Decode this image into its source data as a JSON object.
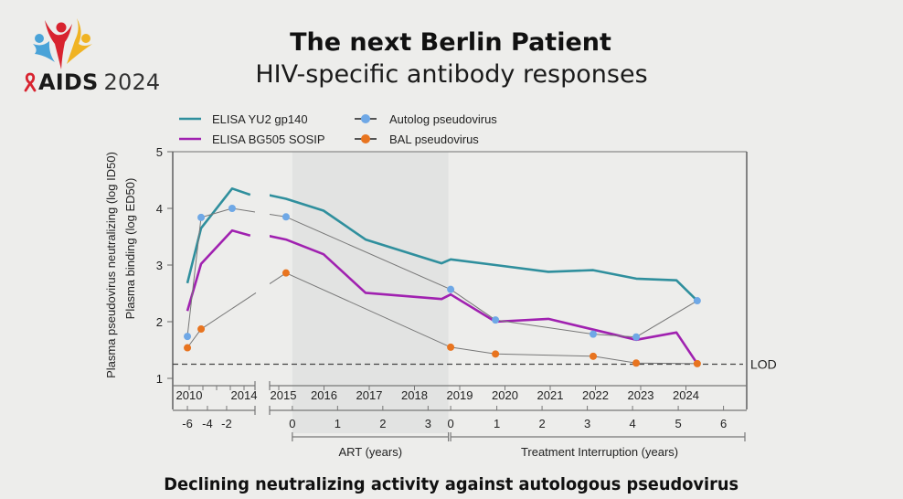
{
  "header": {
    "title": "The next Berlin Patient",
    "subtitle": "HIV-specific antibody responses"
  },
  "logo": {
    "brand": "AIDS",
    "year": "2024",
    "icon": "people-celebrating-icon",
    "ribbon_icon": "red-ribbon-icon",
    "colors": {
      "blue": "#4aa3d8",
      "red": "#d8232f",
      "yellow": "#f0b323",
      "ribbon": "#d8232f"
    }
  },
  "footer": {
    "caption": "Declining neutralizing activity against autologous pseudovirus"
  },
  "chart_data": {
    "type": "line",
    "title": "",
    "ylabel_lines": [
      "Plasma pseudovirus neutralizing (log ID50)",
      "Plasma binding (log ED50)"
    ],
    "ylim": [
      1,
      5
    ],
    "yticks": [
      1,
      2,
      3,
      4,
      5
    ],
    "x_units": "calendar year (axis broken between 2014 and 2015)",
    "x_segments": [
      {
        "from": 2009.6,
        "to": 2014.6
      },
      {
        "from": 2014.75,
        "to": 2025.3
      }
    ],
    "year_ticks": [
      {
        "label": "2010",
        "x": 2010,
        "labeled": true
      },
      {
        "label": "",
        "x": 2011,
        "labeled": false
      },
      {
        "label": "",
        "x": 2012,
        "labeled": false
      },
      {
        "label": "",
        "x": 2013,
        "labeled": false
      },
      {
        "label": "2014",
        "x": 2014,
        "labeled": true
      },
      {
        "label": "2015",
        "x": 2015,
        "labeled": true
      },
      {
        "label": "2016",
        "x": 2016,
        "labeled": true
      },
      {
        "label": "2017",
        "x": 2017,
        "labeled": true
      },
      {
        "label": "2018",
        "x": 2018,
        "labeled": true
      },
      {
        "label": "2019",
        "x": 2019,
        "labeled": true
      },
      {
        "label": "2020",
        "x": 2020,
        "labeled": true
      },
      {
        "label": "2021",
        "x": 2021,
        "labeled": true
      },
      {
        "label": "2022",
        "x": 2022,
        "labeled": true
      },
      {
        "label": "2023",
        "x": 2023,
        "labeled": true
      },
      {
        "label": "2024",
        "x": 2024,
        "labeled": true
      }
    ],
    "relative_ticks": [
      {
        "label": "-6",
        "x": 2009.87
      },
      {
        "label": "-4",
        "x": 2011.33
      },
      {
        "label": "-2",
        "x": 2012.73
      },
      {
        "label": "0",
        "x": 2015.3
      },
      {
        "label": "1",
        "x": 2016.3
      },
      {
        "label": "2",
        "x": 2017.3
      },
      {
        "label": "3",
        "x": 2018.3
      },
      {
        "label": "0",
        "x": 2018.8
      },
      {
        "label": "1",
        "x": 2019.82
      },
      {
        "label": "2",
        "x": 2020.82
      },
      {
        "label": "3",
        "x": 2021.82
      },
      {
        "label": "4",
        "x": 2022.82
      },
      {
        "label": "5",
        "x": 2023.83
      },
      {
        "label": "6",
        "x": 2024.83
      }
    ],
    "phases": [
      {
        "label": "ART (years)",
        "from": 2015.3,
        "to": 2018.75,
        "shaded": true,
        "shade_color": "#e2e3e2"
      },
      {
        "label": "Treatment Interruption (years)",
        "from": 2018.8,
        "to": 2025.3,
        "shaded": false
      }
    ],
    "lod": {
      "label": "LOD",
      "value": 1.25
    },
    "series": [
      {
        "name": "ELISA YU2 gp140",
        "kind": "line",
        "color": "#2f8f9d",
        "segments": [
          [
            [
              2009.87,
              2.68
            ],
            [
              2010.87,
              3.65
            ],
            [
              2013.13,
              4.35
            ],
            [
              2014.45,
              4.24
            ]
          ],
          [
            [
              2014.75,
              4.24
            ],
            [
              2015.16,
              4.17
            ],
            [
              2015.99,
              3.96
            ],
            [
              2016.92,
              3.45
            ],
            [
              2018.6,
              3.03
            ],
            [
              2018.8,
              3.1
            ],
            [
              2019.79,
              3.0
            ],
            [
              2020.96,
              2.88
            ],
            [
              2021.95,
              2.91
            ],
            [
              2022.9,
              2.76
            ],
            [
              2023.79,
              2.73
            ],
            [
              2024.25,
              2.37
            ]
          ]
        ]
      },
      {
        "name": "ELISA BG505 SOSIP",
        "kind": "line",
        "color": "#a021b0",
        "segments": [
          [
            [
              2009.87,
              2.19
            ],
            [
              2010.87,
              3.02
            ],
            [
              2013.13,
              3.61
            ],
            [
              2014.45,
              3.52
            ]
          ],
          [
            [
              2014.75,
              3.52
            ],
            [
              2015.16,
              3.45
            ],
            [
              2015.99,
              3.19
            ],
            [
              2016.92,
              2.51
            ],
            [
              2018.6,
              2.4
            ],
            [
              2018.8,
              2.48
            ],
            [
              2019.79,
              2.0
            ],
            [
              2020.96,
              2.05
            ],
            [
              2022.9,
              1.68
            ],
            [
              2023.79,
              1.81
            ],
            [
              2024.25,
              1.26
            ]
          ]
        ]
      },
      {
        "name": "Autolog pseudovirus",
        "kind": "line+marker",
        "color": "#6fa8e6",
        "line_color": "#777777",
        "points": [
          [
            2009.87,
            1.74
          ],
          [
            2010.87,
            3.84
          ],
          [
            2013.13,
            4.0
          ],
          [
            2015.16,
            3.85
          ],
          [
            2018.8,
            2.57
          ],
          [
            2019.79,
            2.03
          ],
          [
            2021.95,
            1.78
          ],
          [
            2022.9,
            1.73
          ],
          [
            2024.25,
            2.37
          ]
        ],
        "break_after_index": 2
      },
      {
        "name": "BAL pseudovirus",
        "kind": "line+marker",
        "color": "#e8741f",
        "line_color": "#777777",
        "points": [
          [
            2009.87,
            1.54
          ],
          [
            2010.87,
            1.87
          ],
          [
            2015.16,
            2.86
          ],
          [
            2018.8,
            1.55
          ],
          [
            2019.79,
            1.43
          ],
          [
            2021.95,
            1.39
          ],
          [
            2022.9,
            1.27
          ],
          [
            2024.25,
            1.26
          ]
        ],
        "break_after_index": 1
      }
    ],
    "legend": {
      "placement": "top-left",
      "entries": [
        {
          "label": "ELISA YU2 gp140",
          "style": "line",
          "color": "#2f8f9d"
        },
        {
          "label": "ELISA BG505 SOSIP",
          "style": "line",
          "color": "#a021b0"
        },
        {
          "label": "Autolog pseudovirus",
          "style": "line-marker",
          "color": "#6fa8e6"
        },
        {
          "label": "BAL pseudovirus",
          "style": "line-marker",
          "color": "#e8741f"
        }
      ]
    },
    "grid": false
  }
}
